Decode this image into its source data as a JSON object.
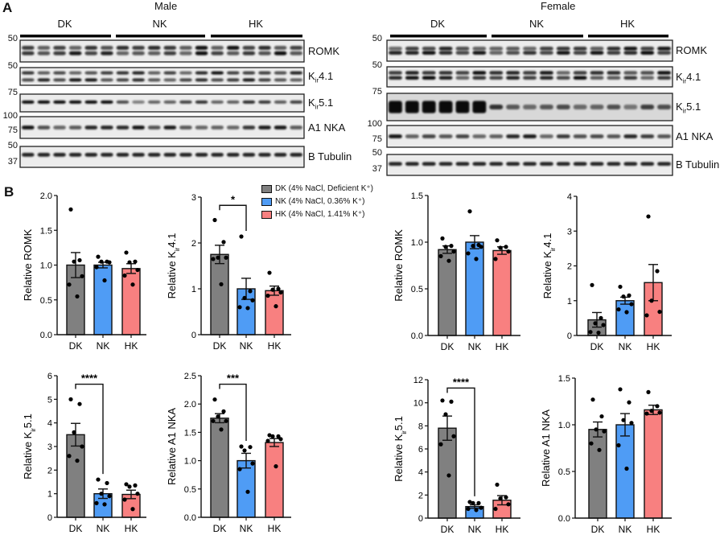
{
  "panel_a": {
    "letter": "A",
    "male": {
      "title": "Male",
      "groups": [
        "DK",
        "NK",
        "HK"
      ],
      "lanes_per_group": [
        6,
        6,
        6
      ],
      "blots": [
        {
          "protein": "ROMK",
          "markers": [
            "50"
          ]
        },
        {
          "protein": "Kir4.1",
          "markers": [
            "50"
          ]
        },
        {
          "protein": "Kir5.1",
          "markers": [
            "75"
          ]
        },
        {
          "protein": "A1 NKA",
          "markers": [
            "100",
            "75"
          ]
        },
        {
          "protein": "B Tubulin",
          "markers": [
            "50",
            "37"
          ]
        }
      ]
    },
    "female": {
      "title": "Female",
      "groups": [
        "DK",
        "NK",
        "HK"
      ],
      "lanes_per_group": [
        6,
        6,
        5
      ],
      "blots": [
        {
          "protein": "ROMK",
          "markers": [
            "50"
          ]
        },
        {
          "protein": "Kir4.1",
          "markers": [
            "50"
          ]
        },
        {
          "protein": "Kir5.1",
          "markers": [
            "75"
          ]
        },
        {
          "protein": "A1 NKA",
          "markers": [
            "100",
            "75"
          ]
        },
        {
          "protein": "B Tubulin",
          "markers": [
            "50",
            "37"
          ]
        }
      ]
    }
  },
  "panel_b": {
    "letter": "B",
    "legend": [
      {
        "group": "DK",
        "label": "DK (4% NaCl, Deficient K⁺)",
        "color": "#808080"
      },
      {
        "group": "NK",
        "label": "NK (4% NaCl, 0.36% K⁺)",
        "color": "#4f9cf5"
      },
      {
        "group": "HK",
        "label": "HK (4% NaCl, 1.41% K⁺)",
        "color": "#f88080"
      }
    ]
  },
  "chart_data": [
    {
      "type": "bar",
      "sex": "Male",
      "ylabel": "Relative ROMK",
      "categories": [
        "DK",
        "NK",
        "HK"
      ],
      "ylim": [
        0,
        2
      ],
      "yticks": [
        "0.0",
        "0.5",
        "1.0",
        "1.5",
        "2.0"
      ],
      "series": [
        {
          "mean": [
            1.0,
            1.0,
            0.95
          ],
          "sem": [
            0.18,
            0.04,
            0.07
          ],
          "points": [
            [
              1.8,
              1.07,
              1.05,
              0.84,
              0.72,
              0.55
            ],
            [
              1.12,
              1.05,
              1.05,
              1.04,
              0.97,
              0.78
            ],
            [
              1.18,
              1.05,
              1.04,
              0.93,
              0.85,
              0.72
            ]
          ]
        }
      ],
      "significance": []
    },
    {
      "type": "bar",
      "sex": "Male",
      "ylabel": "Relative Kir4.1",
      "categories": [
        "DK",
        "NK",
        "HK"
      ],
      "ylim": [
        0,
        3
      ],
      "yticks": [
        "0",
        "1",
        "2",
        "3"
      ],
      "series": [
        {
          "mean": [
            1.75,
            1.0,
            0.96
          ],
          "sem": [
            0.2,
            0.23,
            0.1
          ],
          "points": [
            [
              2.5,
              2.02,
              1.68,
              1.68,
              1.65,
              1.1
            ],
            [
              2.14,
              0.95,
              0.8,
              0.75,
              0.6,
              0.58
            ],
            [
              1.35,
              1.0,
              0.98,
              0.92,
              0.85,
              0.62
            ]
          ]
        }
      ],
      "significance": [
        {
          "between": [
            "DK",
            "NK"
          ],
          "label": "*"
        }
      ]
    },
    {
      "type": "bar",
      "sex": "Female",
      "ylabel": "Relative ROMK",
      "categories": [
        "DK",
        "NK",
        "HK"
      ],
      "ylim": [
        0,
        1.5
      ],
      "yticks": [
        "0.0",
        "0.5",
        "1.0",
        "1.5"
      ],
      "series": [
        {
          "mean": [
            0.92,
            1.0,
            0.91
          ],
          "sem": [
            0.04,
            0.07,
            0.04
          ],
          "points": [
            [
              1.04,
              0.96,
              0.95,
              0.9,
              0.85,
              0.8
            ],
            [
              1.33,
              0.97,
              0.96,
              0.95,
              0.88,
              0.82
            ],
            [
              1.02,
              0.95,
              0.94,
              0.9,
              0.82
            ]
          ]
        }
      ],
      "significance": []
    },
    {
      "type": "bar",
      "sex": "Female",
      "ylabel": "Relative Kir4.1",
      "categories": [
        "DK",
        "NK",
        "HK"
      ],
      "ylim": [
        0,
        4
      ],
      "yticks": [
        "0",
        "1",
        "2",
        "3",
        "4"
      ],
      "series": [
        {
          "mean": [
            0.45,
            1.0,
            1.52
          ],
          "sem": [
            0.21,
            0.1,
            0.52
          ],
          "points": [
            [
              1.45,
              0.5,
              0.35,
              0.3,
              0.1,
              0.08
            ],
            [
              1.4,
              1.15,
              1.12,
              0.9,
              0.75,
              0.67
            ],
            [
              3.42,
              1.85,
              1.0,
              0.68,
              0.58
            ]
          ]
        }
      ],
      "significance": []
    },
    {
      "type": "bar",
      "sex": "Male",
      "ylabel": "Relative Kir5.1",
      "categories": [
        "DK",
        "NK",
        "HK"
      ],
      "ylim": [
        0,
        6
      ],
      "yticks": [
        "0",
        "1",
        "2",
        "3",
        "4",
        "5",
        "6"
      ],
      "series": [
        {
          "mean": [
            3.5,
            1.0,
            0.97
          ],
          "sem": [
            0.48,
            0.2,
            0.18
          ],
          "points": [
            [
              5.0,
              4.8,
              3.6,
              3.0,
              2.6,
              2.4
            ],
            [
              1.6,
              1.45,
              1.0,
              0.9,
              0.6,
              0.55
            ],
            [
              1.4,
              1.35,
              1.3,
              1.0,
              0.75,
              0.35
            ]
          ]
        }
      ],
      "significance": [
        {
          "between": [
            "DK",
            "NK"
          ],
          "label": "****"
        }
      ]
    },
    {
      "type": "bar",
      "sex": "Male",
      "ylabel": "Relative A1 NKA",
      "categories": [
        "DK",
        "NK",
        "HK"
      ],
      "ylim": [
        0,
        2.5
      ],
      "yticks": [
        "0.0",
        "0.5",
        "1.0",
        "1.5",
        "2.0",
        "2.5"
      ],
      "series": [
        {
          "mean": [
            1.75,
            1.0,
            1.32
          ],
          "sem": [
            0.08,
            0.13,
            0.07
          ],
          "points": [
            [
              2.08,
              1.87,
              1.78,
              1.7,
              1.7,
              1.55
            ],
            [
              1.25,
              1.24,
              1.18,
              0.95,
              0.85,
              0.45
            ],
            [
              1.45,
              1.43,
              1.43,
              1.38,
              1.35,
              0.9
            ]
          ]
        }
      ],
      "significance": [
        {
          "between": [
            "DK",
            "NK"
          ],
          "label": "***"
        }
      ]
    },
    {
      "type": "bar",
      "sex": "Female",
      "ylabel": "Relative Kir5.1",
      "categories": [
        "DK",
        "NK",
        "HK"
      ],
      "ylim": [
        0,
        12
      ],
      "yticks": [
        "0",
        "2",
        "4",
        "6",
        "8",
        "10",
        "12"
      ],
      "series": [
        {
          "mean": [
            7.8,
            1.0,
            1.55
          ],
          "sem": [
            1.05,
            0.15,
            0.4
          ],
          "points": [
            [
              10.2,
              10.1,
              9.0,
              7.1,
              6.4,
              3.7
            ],
            [
              1.4,
              1.3,
              1.3,
              0.9,
              0.8,
              0.7
            ],
            [
              2.9,
              1.8,
              1.7,
              1.2,
              0.8
            ]
          ]
        }
      ],
      "significance": [
        {
          "between": [
            "DK",
            "NK"
          ],
          "label": "****"
        }
      ]
    },
    {
      "type": "bar",
      "sex": "Female",
      "ylabel": "Relative A1 NKA",
      "categories": [
        "DK",
        "NK",
        "HK"
      ],
      "ylim": [
        0,
        1.5
      ],
      "yticks": [
        "0.0",
        "0.5",
        "1.0",
        "1.5"
      ],
      "series": [
        {
          "mean": [
            0.95,
            1.0,
            1.16
          ],
          "sem": [
            0.08,
            0.12,
            0.05
          ],
          "points": [
            [
              1.27,
              1.09,
              0.95,
              0.93,
              0.8,
              0.73
            ],
            [
              1.38,
              1.24,
              1.05,
              1.02,
              0.78,
              0.53
            ],
            [
              1.35,
              1.2,
              1.15,
              1.13,
              1.12
            ]
          ]
        }
      ],
      "significance": []
    }
  ]
}
